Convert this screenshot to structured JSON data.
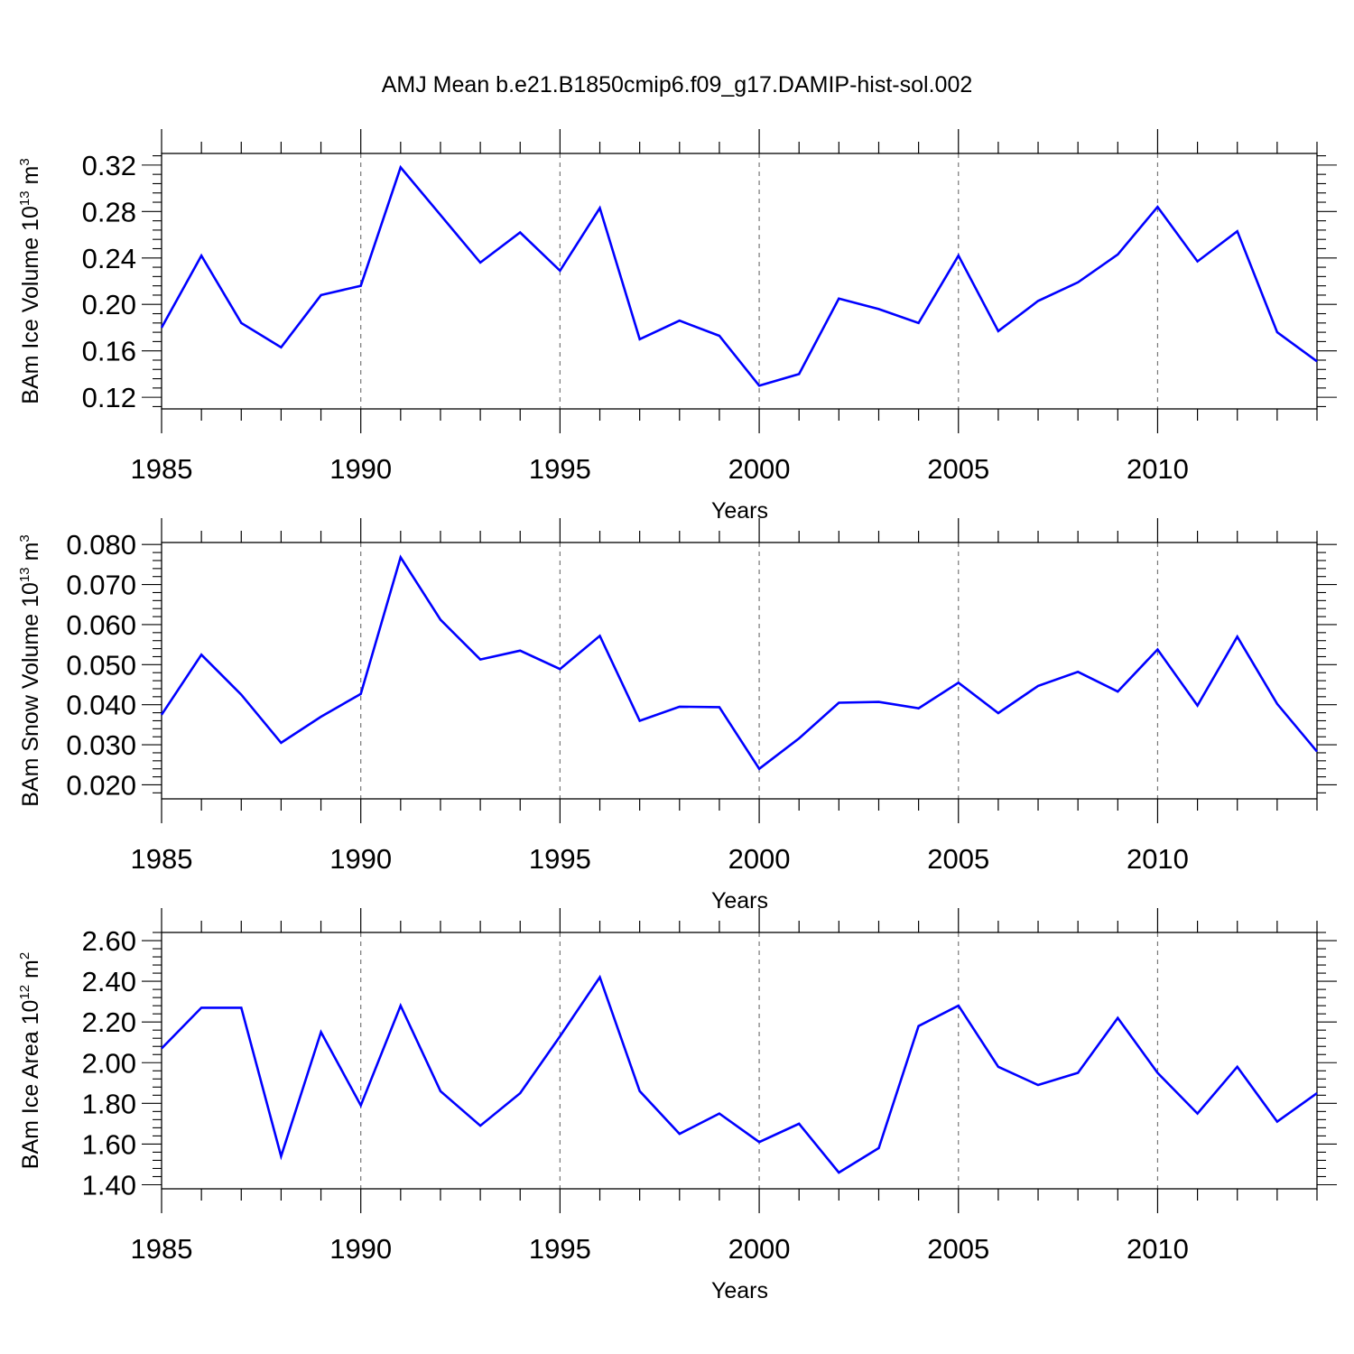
{
  "figure": {
    "title": "AMJ Mean b.e21.B1850cmip6.f09_g17.DAMIP-hist-sol.002"
  },
  "colors": {
    "line": "#0000ff",
    "axis": "#000000",
    "grid": "#777777"
  },
  "chart_data": [
    {
      "type": "line",
      "title": "",
      "xlabel": "Years",
      "ylabel": {
        "text": "BAm Ice Volume 10",
        "sup": "13",
        "unit": " m",
        "unit_sup": "3"
      },
      "xlim": [
        1985,
        2014
      ],
      "ylim": [
        0.11,
        0.33
      ],
      "xticks": [
        1985,
        1990,
        1995,
        2000,
        2005,
        2010
      ],
      "xtick_labels": [
        "1985",
        "1990",
        "1995",
        "2000",
        "2005",
        "2010"
      ],
      "yticks": [
        0.12,
        0.16,
        0.2,
        0.24,
        0.28,
        0.32
      ],
      "ytick_labels": [
        "0.12",
        "0.16",
        "0.20",
        "0.24",
        "0.28",
        "0.32"
      ],
      "grid_x": [
        1990,
        1995,
        2000,
        2005,
        2010
      ],
      "x": [
        1985,
        1986,
        1987,
        1988,
        1989,
        1990,
        1991,
        1992,
        1993,
        1994,
        1995,
        1996,
        1997,
        1998,
        1999,
        2000,
        2001,
        2002,
        2003,
        2004,
        2005,
        2006,
        2007,
        2008,
        2009,
        2010,
        2011,
        2012,
        2013,
        2014
      ],
      "series": [
        {
          "name": "BAm Ice Volume",
          "values": [
            0.18,
            0.242,
            0.184,
            0.163,
            0.208,
            0.216,
            0.318,
            0.277,
            0.236,
            0.262,
            0.229,
            0.283,
            0.17,
            0.186,
            0.173,
            0.13,
            0.14,
            0.205,
            0.196,
            0.184,
            0.242,
            0.177,
            0.203,
            0.219,
            0.243,
            0.284,
            0.237,
            0.263,
            0.176,
            0.151
          ]
        }
      ]
    },
    {
      "type": "line",
      "title": "",
      "xlabel": "Years",
      "ylabel": {
        "text": "BAm Snow Volume 10",
        "sup": "13",
        "unit": " m",
        "unit_sup": "3"
      },
      "xlim": [
        1985,
        2014
      ],
      "ylim": [
        0.0165,
        0.0805
      ],
      "xticks": [
        1985,
        1990,
        1995,
        2000,
        2005,
        2010
      ],
      "xtick_labels": [
        "1985",
        "1990",
        "1995",
        "2000",
        "2005",
        "2010"
      ],
      "yticks": [
        0.02,
        0.03,
        0.04,
        0.05,
        0.06,
        0.07,
        0.08
      ],
      "ytick_labels": [
        "0.020",
        "0.030",
        "0.040",
        "0.050",
        "0.060",
        "0.070",
        "0.080"
      ],
      "grid_x": [
        1990,
        1995,
        2000,
        2005,
        2010
      ],
      "x": [
        1985,
        1986,
        1987,
        1988,
        1989,
        1990,
        1991,
        1992,
        1993,
        1994,
        1995,
        1996,
        1997,
        1998,
        1999,
        2000,
        2001,
        2002,
        2003,
        2004,
        2005,
        2006,
        2007,
        2008,
        2009,
        2010,
        2011,
        2012,
        2013,
        2014
      ],
      "series": [
        {
          "name": "BAm Snow Volume",
          "values": [
            0.0375,
            0.0525,
            0.0425,
            0.0305,
            0.037,
            0.0427,
            0.0768,
            0.0612,
            0.0513,
            0.0535,
            0.0489,
            0.0572,
            0.036,
            0.0395,
            0.0394,
            0.024,
            0.0316,
            0.0405,
            0.0407,
            0.0391,
            0.0455,
            0.0379,
            0.0447,
            0.0482,
            0.0433,
            0.0538,
            0.0398,
            0.057,
            0.0402,
            0.0283
          ]
        }
      ]
    },
    {
      "type": "line",
      "title": "",
      "xlabel": "Years",
      "ylabel": {
        "text": "BAm Ice Area 10",
        "sup": "12",
        "unit": " m",
        "unit_sup": "2"
      },
      "xlim": [
        1985,
        2014
      ],
      "ylim": [
        1.38,
        2.64
      ],
      "xticks": [
        1985,
        1990,
        1995,
        2000,
        2005,
        2010
      ],
      "xtick_labels": [
        "1985",
        "1990",
        "1995",
        "2000",
        "2005",
        "2010"
      ],
      "yticks": [
        1.4,
        1.6,
        1.8,
        2.0,
        2.2,
        2.4,
        2.6
      ],
      "ytick_labels": [
        "1.40",
        "1.60",
        "1.80",
        "2.00",
        "2.20",
        "2.40",
        "2.60"
      ],
      "grid_x": [
        1990,
        1995,
        2000,
        2005,
        2010
      ],
      "x": [
        1985,
        1986,
        1987,
        1988,
        1989,
        1990,
        1991,
        1992,
        1993,
        1994,
        1995,
        1996,
        1997,
        1998,
        1999,
        2000,
        2001,
        2002,
        2003,
        2004,
        2005,
        2006,
        2007,
        2008,
        2009,
        2010,
        2011,
        2012,
        2013,
        2014
      ],
      "series": [
        {
          "name": "BAm Ice Area",
          "values": [
            2.07,
            2.27,
            2.27,
            1.54,
            2.15,
            1.79,
            2.28,
            1.86,
            1.69,
            1.85,
            2.13,
            2.42,
            1.86,
            1.65,
            1.75,
            1.61,
            1.7,
            1.46,
            1.58,
            2.18,
            2.28,
            1.98,
            1.89,
            1.95,
            2.22,
            1.95,
            1.75,
            1.98,
            1.71,
            1.85
          ]
        }
      ]
    }
  ]
}
